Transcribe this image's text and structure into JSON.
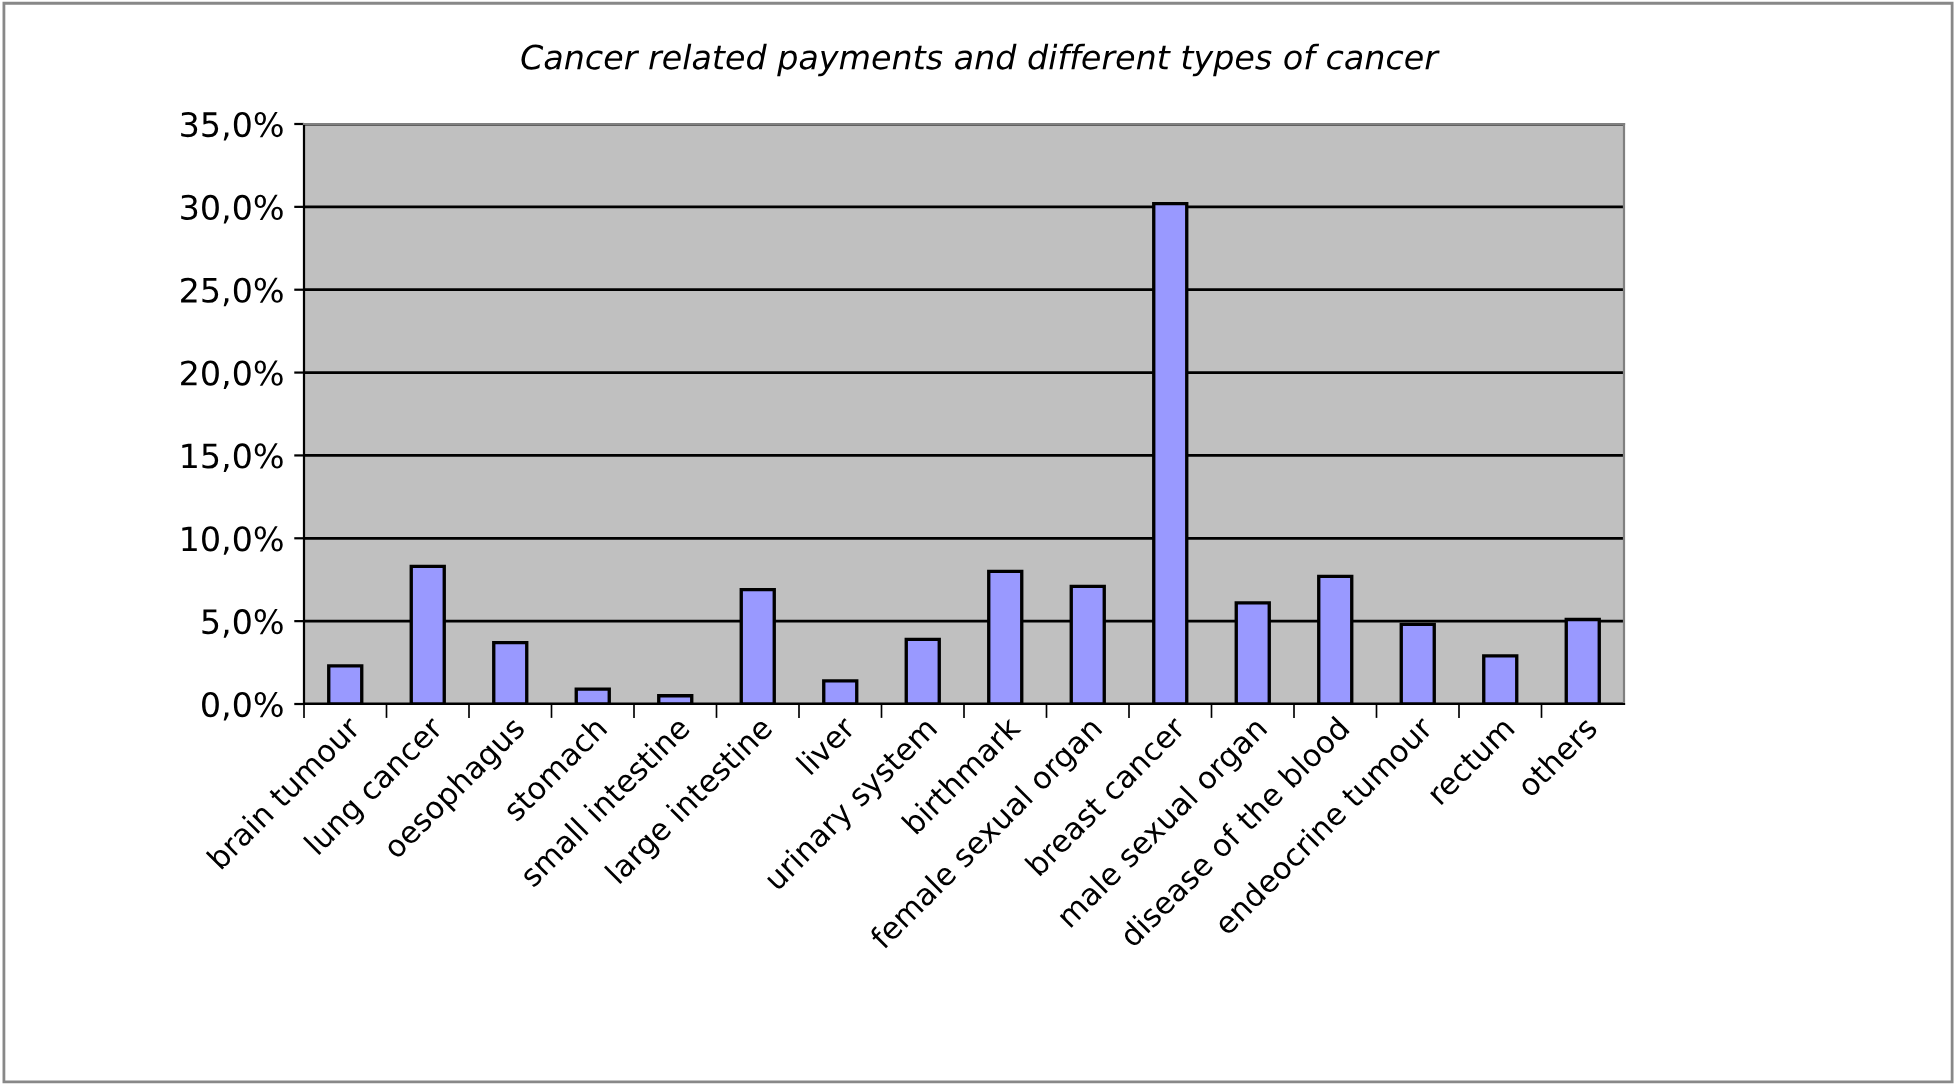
{
  "chart_data": {
    "type": "bar",
    "title": "Cancer related payments and different types of cancer",
    "categories": [
      "brain tumour",
      "lung cancer",
      "oesophagus",
      "stomach",
      "small intestine",
      "large intestine",
      "liver",
      "urinary system",
      "birthmark",
      "female sexual organ",
      "breast cancer",
      "male sexual organ",
      "disease of the blood",
      "endeocrine tumour",
      "rectum",
      "others"
    ],
    "values": [
      2.3,
      8.3,
      3.7,
      0.9,
      0.5,
      6.9,
      1.4,
      3.9,
      8.0,
      7.1,
      30.2,
      6.1,
      7.7,
      4.8,
      2.9,
      5.1
    ],
    "color": "#9999ff",
    "ylim": [
      0,
      35
    ],
    "yticks": [
      {
        "value": 0,
        "label": "0,0%"
      },
      {
        "value": 5,
        "label": "5,0%"
      },
      {
        "value": 10,
        "label": "10,0%"
      },
      {
        "value": 15,
        "label": "15,0%"
      },
      {
        "value": 20,
        "label": "20,0%"
      },
      {
        "value": 25,
        "label": "25,0%"
      },
      {
        "value": 30,
        "label": "30,0%"
      },
      {
        "value": 35,
        "label": "35,0%"
      }
    ],
    "grid": "y",
    "legend": false
  }
}
